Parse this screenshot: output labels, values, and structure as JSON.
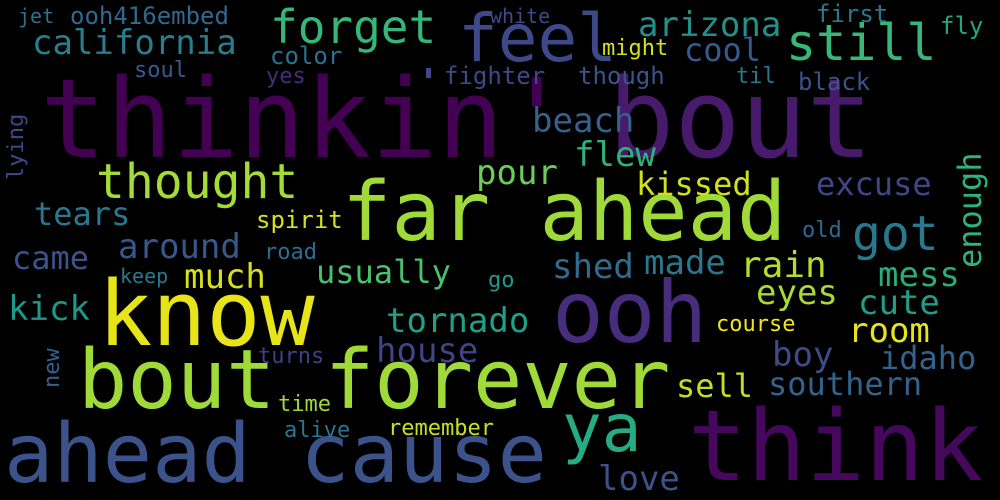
{
  "words": [
    {
      "text": "thinkin'",
      "color": "#440154"
    },
    {
      "text": "bout",
      "color": "#481a6c"
    },
    {
      "text": "think",
      "color": "#46085c"
    },
    {
      "text": "far ahead",
      "color": "#a0da39"
    },
    {
      "text": "know",
      "color": "#e7e419"
    },
    {
      "text": "bout forever",
      "color": "#a0da39"
    },
    {
      "text": "ahead cause",
      "color": "#3b528b"
    },
    {
      "text": "ooh",
      "color": "#472d7b"
    },
    {
      "text": "feel",
      "color": "#3e4989"
    },
    {
      "text": "ya",
      "color": "#25ac82"
    },
    {
      "text": "forget",
      "color": "#35b779"
    },
    {
      "text": "still",
      "color": "#37b878"
    },
    {
      "text": "california",
      "color": "#277f8e"
    },
    {
      "text": "thought",
      "color": "#a5db36"
    },
    {
      "text": "got",
      "color": "#2a788e"
    },
    {
      "text": "arizona",
      "color": "#21918c"
    },
    {
      "text": "cool",
      "color": "#38598c"
    },
    {
      "text": "usually",
      "color": "#4ac16d"
    },
    {
      "text": "around",
      "color": "#38588c"
    },
    {
      "text": "much",
      "color": "#d8e219"
    },
    {
      "text": "tears",
      "color": "#2a788e"
    },
    {
      "text": "came",
      "color": "#3b528b"
    },
    {
      "text": "kick",
      "color": "#1f988b"
    },
    {
      "text": "beach",
      "color": "#34618d"
    },
    {
      "text": "pour",
      "color": "#6ccd5a"
    },
    {
      "text": "flew",
      "color": "#2db27d"
    },
    {
      "text": "kissed",
      "color": "#d0e11c"
    },
    {
      "text": "excuse",
      "color": "#3f4788"
    },
    {
      "text": "enough",
      "color": "#2eb37c"
    },
    {
      "text": "shed",
      "color": "#2f6c8e"
    },
    {
      "text": "made",
      "color": "#2a788e"
    },
    {
      "text": "rain",
      "color": "#b5de2b"
    },
    {
      "text": "eyes",
      "color": "#a8db34"
    },
    {
      "text": "mess",
      "color": "#26ad81"
    },
    {
      "text": "cute",
      "color": "#1f9e89"
    },
    {
      "text": "room",
      "color": "#e7e419"
    },
    {
      "text": "tornado",
      "color": "#1fa088"
    },
    {
      "text": "house",
      "color": "#414487"
    },
    {
      "text": "boy",
      "color": "#3e4a89"
    },
    {
      "text": "idaho",
      "color": "#33638d"
    },
    {
      "text": "sell",
      "color": "#c0df25"
    },
    {
      "text": "southern",
      "color": "#33638d"
    },
    {
      "text": "love",
      "color": "#3b528b"
    },
    {
      "text": "jet",
      "color": "#2c728e"
    },
    {
      "text": "ooh416embed",
      "color": "#31688e"
    },
    {
      "text": "white",
      "color": "#3e4989"
    },
    {
      "text": "first",
      "color": "#2a788e"
    },
    {
      "text": "fly",
      "color": "#21a685"
    },
    {
      "text": "might",
      "color": "#d2e21b"
    },
    {
      "text": "color",
      "color": "#2c718e"
    },
    {
      "text": "soul",
      "color": "#38598c"
    },
    {
      "text": "yes",
      "color": "#472c7a"
    },
    {
      "text": "fighter",
      "color": "#3e4989"
    },
    {
      "text": "though",
      "color": "#3a548c"
    },
    {
      "text": "til",
      "color": "#2a788e"
    },
    {
      "text": "black",
      "color": "#3b528b"
    },
    {
      "text": "spirit",
      "color": "#d5e21a"
    },
    {
      "text": "road",
      "color": "#2f6c8e"
    },
    {
      "text": "keep",
      "color": "#29798e"
    },
    {
      "text": "go",
      "color": "#1f9a8a"
    },
    {
      "text": "old",
      "color": "#31688e"
    },
    {
      "text": "course",
      "color": "#f1e51d"
    },
    {
      "text": "turns",
      "color": "#433e85"
    },
    {
      "text": "time",
      "color": "#9dd93b"
    },
    {
      "text": "alive",
      "color": "#2a768e"
    },
    {
      "text": "remember",
      "color": "#c8e020"
    },
    {
      "text": "new",
      "color": "#34618d"
    },
    {
      "text": "lying",
      "color": "#3e4a89"
    }
  ]
}
